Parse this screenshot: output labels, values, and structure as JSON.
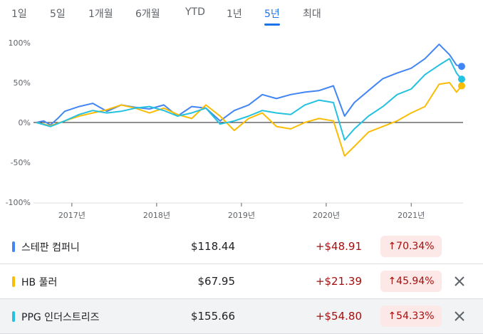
{
  "tabs": [
    {
      "label": "1일",
      "active": false
    },
    {
      "label": "5일",
      "active": false
    },
    {
      "label": "1개월",
      "active": false
    },
    {
      "label": "6개월",
      "active": false
    },
    {
      "label": "YTD",
      "active": false
    },
    {
      "label": "1년",
      "active": false
    },
    {
      "label": "5년",
      "active": true
    },
    {
      "label": "최대",
      "active": false
    }
  ],
  "chart_data": {
    "type": "line",
    "y_unit": "%",
    "yticks": [
      "100%",
      "50%",
      "0%",
      "-50%",
      "-100%"
    ],
    "ylim": [
      -100,
      100
    ],
    "xlim": [
      "2016-08-01",
      "2021-08-06"
    ],
    "xticks": [
      {
        "label": "2017년",
        "date": "2017-01-01"
      },
      {
        "label": "2018년",
        "date": "2018-01-01"
      },
      {
        "label": "2019년",
        "date": "2019-01-01"
      },
      {
        "label": "2020년",
        "date": "2020-01-01"
      },
      {
        "label": "2021년",
        "date": "2021-01-01"
      }
    ],
    "legend": "none",
    "grid": false,
    "series": [
      {
        "name": "스테판 컴퍼니",
        "color": "#4285f4",
        "points": [
          [
            "2016-08-01",
            0
          ],
          [
            "2016-09-01",
            2
          ],
          [
            "2016-10-01",
            -3
          ],
          [
            "2016-11-01",
            5
          ],
          [
            "2016-12-01",
            14
          ],
          [
            "2017-02-01",
            20
          ],
          [
            "2017-04-01",
            24
          ],
          [
            "2017-06-01",
            14
          ],
          [
            "2017-08-01",
            22
          ],
          [
            "2017-10-01",
            19
          ],
          [
            "2017-12-01",
            17
          ],
          [
            "2018-02-01",
            22
          ],
          [
            "2018-04-01",
            8
          ],
          [
            "2018-06-01",
            20
          ],
          [
            "2018-08-01",
            18
          ],
          [
            "2018-10-01",
            2
          ],
          [
            "2018-12-01",
            15
          ],
          [
            "2019-02-01",
            22
          ],
          [
            "2019-04-01",
            35
          ],
          [
            "2019-06-01",
            30
          ],
          [
            "2019-08-01",
            35
          ],
          [
            "2019-10-01",
            38
          ],
          [
            "2019-12-01",
            40
          ],
          [
            "2020-02-01",
            46
          ],
          [
            "2020-03-20",
            8
          ],
          [
            "2020-05-01",
            25
          ],
          [
            "2020-07-01",
            40
          ],
          [
            "2020-09-01",
            55
          ],
          [
            "2020-11-01",
            62
          ],
          [
            "2021-01-01",
            68
          ],
          [
            "2021-03-01",
            80
          ],
          [
            "2021-05-01",
            98
          ],
          [
            "2021-06-15",
            85
          ],
          [
            "2021-07-15",
            72
          ],
          [
            "2021-08-06",
            70
          ]
        ],
        "last_value": 70.34
      },
      {
        "name": "HB 풀러",
        "color": "#fbbc04",
        "points": [
          [
            "2016-08-01",
            0
          ],
          [
            "2016-10-01",
            -4
          ],
          [
            "2016-12-01",
            2
          ],
          [
            "2017-02-01",
            8
          ],
          [
            "2017-04-01",
            12
          ],
          [
            "2017-06-01",
            16
          ],
          [
            "2017-08-01",
            22
          ],
          [
            "2017-10-01",
            18
          ],
          [
            "2017-12-01",
            12
          ],
          [
            "2018-02-01",
            18
          ],
          [
            "2018-04-01",
            10
          ],
          [
            "2018-06-01",
            5
          ],
          [
            "2018-08-01",
            22
          ],
          [
            "2018-10-01",
            8
          ],
          [
            "2018-12-01",
            -10
          ],
          [
            "2019-02-01",
            5
          ],
          [
            "2019-04-01",
            12
          ],
          [
            "2019-06-01",
            -5
          ],
          [
            "2019-08-01",
            -8
          ],
          [
            "2019-10-01",
            0
          ],
          [
            "2019-12-01",
            5
          ],
          [
            "2020-02-01",
            2
          ],
          [
            "2020-03-20",
            -42
          ],
          [
            "2020-05-01",
            -30
          ],
          [
            "2020-07-01",
            -12
          ],
          [
            "2020-09-01",
            -5
          ],
          [
            "2020-11-01",
            2
          ],
          [
            "2021-01-01",
            12
          ],
          [
            "2021-03-01",
            20
          ],
          [
            "2021-05-01",
            48
          ],
          [
            "2021-06-15",
            50
          ],
          [
            "2021-07-15",
            38
          ],
          [
            "2021-08-06",
            46
          ]
        ],
        "last_value": 45.94
      },
      {
        "name": "PPG 인더스트리즈",
        "color": "#24c1e0",
        "points": [
          [
            "2016-08-01",
            0
          ],
          [
            "2016-10-01",
            -5
          ],
          [
            "2016-12-01",
            2
          ],
          [
            "2017-02-01",
            10
          ],
          [
            "2017-04-01",
            15
          ],
          [
            "2017-06-01",
            12
          ],
          [
            "2017-08-01",
            14
          ],
          [
            "2017-10-01",
            18
          ],
          [
            "2017-12-01",
            20
          ],
          [
            "2018-02-01",
            15
          ],
          [
            "2018-04-01",
            8
          ],
          [
            "2018-06-01",
            12
          ],
          [
            "2018-08-01",
            18
          ],
          [
            "2018-10-01",
            -2
          ],
          [
            "2018-12-01",
            2
          ],
          [
            "2019-02-01",
            8
          ],
          [
            "2019-04-01",
            15
          ],
          [
            "2019-06-01",
            12
          ],
          [
            "2019-08-01",
            10
          ],
          [
            "2019-10-01",
            22
          ],
          [
            "2019-12-01",
            28
          ],
          [
            "2020-02-01",
            25
          ],
          [
            "2020-03-20",
            -22
          ],
          [
            "2020-05-01",
            -8
          ],
          [
            "2020-07-01",
            8
          ],
          [
            "2020-09-01",
            20
          ],
          [
            "2020-11-01",
            35
          ],
          [
            "2021-01-01",
            42
          ],
          [
            "2021-03-01",
            60
          ],
          [
            "2021-05-01",
            72
          ],
          [
            "2021-06-15",
            80
          ],
          [
            "2021-07-15",
            62
          ],
          [
            "2021-08-06",
            54
          ]
        ],
        "last_value": 54.33
      }
    ]
  },
  "rows": [
    {
      "name": "스테판 컴퍼니",
      "price": "$118.44",
      "change": "+$48.91",
      "percent": "70.34%",
      "color": "#4285f4",
      "removable": false
    },
    {
      "name": "HB 풀러",
      "price": "$67.95",
      "change": "+$21.39",
      "percent": "45.94%",
      "color": "#fbbc04",
      "removable": true
    },
    {
      "name": "PPG 인더스트리즈",
      "price": "$155.66",
      "change": "+$54.80",
      "percent": "54.33%",
      "color": "#24c1e0",
      "removable": true
    }
  ]
}
